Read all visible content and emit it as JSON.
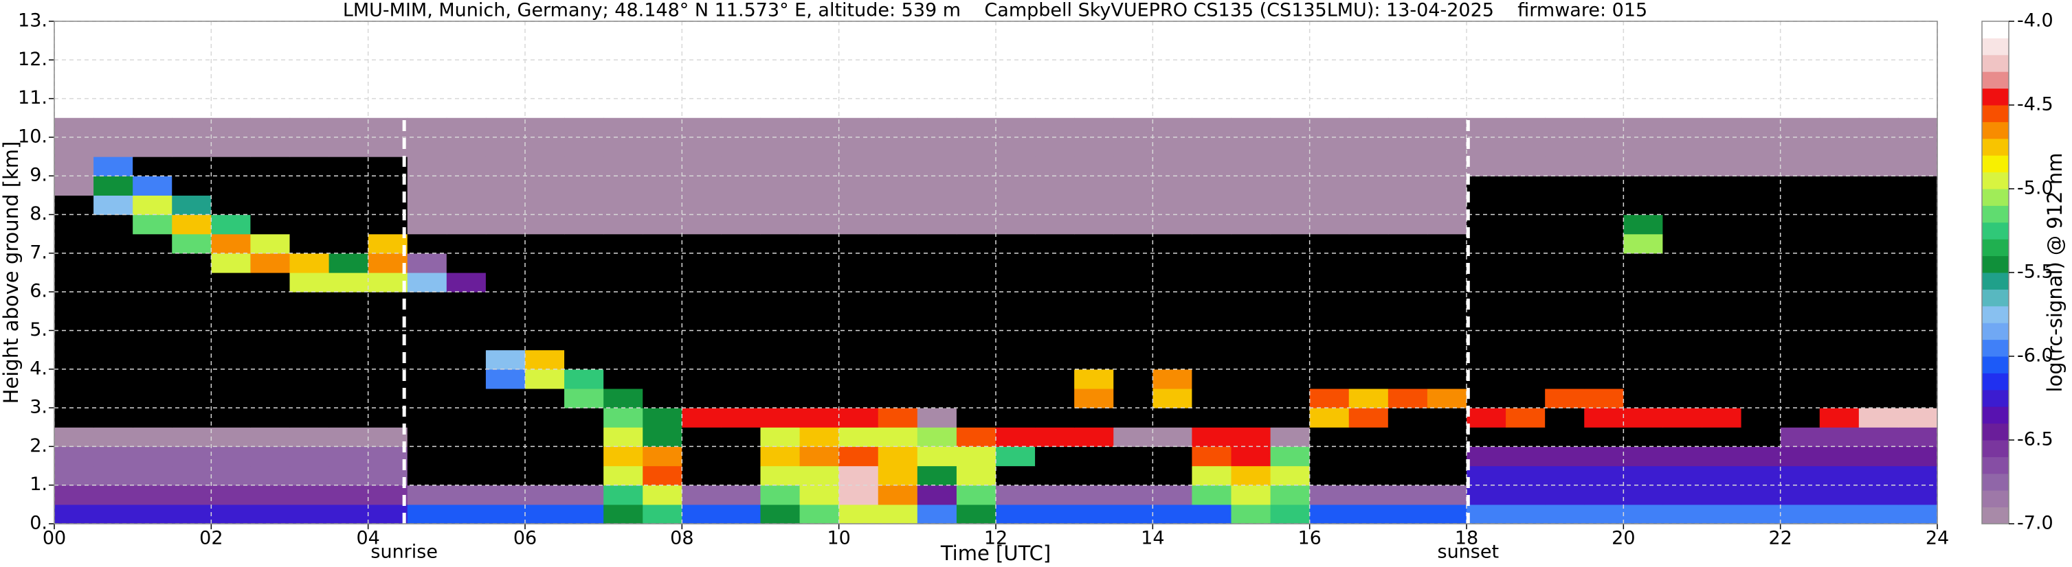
{
  "chart_data": {
    "type": "heatmap",
    "title": "LMU-MIM, Munich, Germany; 48.148° N 11.573° E, altitude: 539 m    Campbell SkyVUEPRO CS135 (CS135LMU): 13-04-2025    firmware: 015",
    "x_label": "Time [UTC]",
    "y_label": "Height above ground [km]",
    "colorbar_label": "log(rc-signal) @ 912 nm",
    "xlim": [
      0,
      24
    ],
    "ylim": [
      0,
      13
    ],
    "clim": [
      -7,
      -4
    ],
    "xticks": [
      {
        "value": 0,
        "label": "00"
      },
      {
        "value": 2,
        "label": "02"
      },
      {
        "value": 4,
        "label": "04"
      },
      {
        "value": 6,
        "label": "06"
      },
      {
        "value": 8,
        "label": "08"
      },
      {
        "value": 10,
        "label": "10"
      },
      {
        "value": 12,
        "label": "12"
      },
      {
        "value": 14,
        "label": "14"
      },
      {
        "value": 16,
        "label": "16"
      },
      {
        "value": 18,
        "label": "18"
      },
      {
        "value": 20,
        "label": "20"
      },
      {
        "value": 22,
        "label": "22"
      },
      {
        "value": 24,
        "label": "24"
      }
    ],
    "yticks": [
      {
        "value": 0,
        "label": "0."
      },
      {
        "value": 1,
        "label": "1."
      },
      {
        "value": 2,
        "label": "2."
      },
      {
        "value": 3,
        "label": "3."
      },
      {
        "value": 4,
        "label": "4."
      },
      {
        "value": 5,
        "label": "5."
      },
      {
        "value": 6,
        "label": "6."
      },
      {
        "value": 7,
        "label": "7."
      },
      {
        "value": 8,
        "label": "8."
      },
      {
        "value": 9,
        "label": "9."
      },
      {
        "value": 10,
        "label": "10."
      },
      {
        "value": 11,
        "label": "11."
      },
      {
        "value": 12,
        "label": "12."
      },
      {
        "value": 13,
        "label": "13."
      }
    ],
    "cticks": [
      {
        "value": -4,
        "label": "-4.0"
      },
      -4.5,
      {
        "value": -5,
        "label": "-5.0"
      },
      -5.5,
      {
        "value": -6,
        "label": "-6.0"
      },
      -6.5,
      {
        "value": -7,
        "label": "-7.0"
      }
    ],
    "grid": true,
    "under_color": "#000000",
    "colormap": [
      "#a88aa8",
      "#9e78a8",
      "#9066a8",
      "#864ea4",
      "#7a369e",
      "#6a1e9a",
      "#5812b0",
      "#3c1cd0",
      "#2030f0",
      "#1c5af8",
      "#4080f8",
      "#70a8f4",
      "#88c0f0",
      "#58b8c0",
      "#20a08a",
      "#10903a",
      "#20b050",
      "#30c878",
      "#60dc70",
      "#a0ec58",
      "#d8f440",
      "#f8f000",
      "#f8c400",
      "#f88c00",
      "#f85000",
      "#f01010",
      "#e88c8c",
      "#f0c4c4",
      "#f8e4e4",
      "#ffffff"
    ],
    "annotations": [
      {
        "text": "sunrise",
        "x": 4.46
      },
      {
        "text": "sunset",
        "x": 18.02
      }
    ],
    "x": [
      0.25,
      0.75,
      1.25,
      1.75,
      2.25,
      2.75,
      3.25,
      3.75,
      4.25,
      4.75,
      5.25,
      5.75,
      6.25,
      6.75,
      7.25,
      7.75,
      8.25,
      8.75,
      9.25,
      9.75,
      10.25,
      10.75,
      11.25,
      11.75,
      12.25,
      12.75,
      13.25,
      13.75,
      14.25,
      14.75,
      15.25,
      15.75,
      16.25,
      16.75,
      17.25,
      17.75,
      18.25,
      18.75,
      19.25,
      19.75,
      20.25,
      20.75,
      21.25,
      21.75,
      22.25,
      22.75,
      23.25,
      23.75
    ],
    "y": [
      0.25,
      0.75,
      1.25,
      1.75,
      2.25,
      2.75,
      3.25,
      3.75,
      4.25,
      4.75,
      5.25,
      5.75,
      6.25,
      6.75,
      7.25,
      7.75,
      8.25,
      8.75,
      9.25,
      9.75,
      10.25
    ],
    "z": [
      [
        -6.2,
        -6.2,
        -6.2,
        -6.2,
        -6.2,
        -6.2,
        -6.2,
        -6.2,
        -6.2,
        -6.1,
        -6.1,
        -6.1,
        -6.1,
        -6.1,
        -5.4,
        -5.3,
        -6.1,
        -6.1,
        -5.5,
        -5.2,
        -4.9,
        -5.0,
        -6.0,
        -5.4,
        -6.1,
        -6.1,
        -6.1,
        -6.1,
        -6.1,
        -6.1,
        -5.2,
        -5.3,
        -6.1,
        -6.1,
        -6.1,
        -6.1,
        -6.0,
        -6.0,
        -6.0,
        -6.0,
        -6.0,
        -6.0,
        -6.0,
        -6.0,
        -6.0,
        -6.0,
        -6.0,
        -6.0
      ],
      [
        -6.6,
        -6.6,
        -6.6,
        -6.6,
        -6.6,
        -6.6,
        -6.6,
        -6.6,
        -6.6,
        -6.7,
        -6.7,
        -6.7,
        -6.7,
        -6.7,
        -5.3,
        -5.0,
        -6.7,
        -6.7,
        -5.2,
        -4.9,
        -4.3,
        -4.7,
        -6.5,
        -5.2,
        -6.7,
        -6.7,
        -6.7,
        -6.7,
        -6.7,
        -5.2,
        -4.9,
        -5.2,
        -6.7,
        -6.7,
        -6.7,
        -6.7,
        -6.2,
        -6.2,
        -6.2,
        -6.2,
        -6.2,
        -6.2,
        -6.2,
        -6.2,
        -6.2,
        -6.2,
        -6.2,
        -6.2
      ],
      [
        -6.7,
        -6.7,
        -6.7,
        -6.7,
        -6.7,
        -6.7,
        -6.7,
        -6.7,
        -6.7,
        -7.2,
        -7.2,
        -7.2,
        -7.2,
        -7.2,
        -5.0,
        -4.6,
        -7.2,
        -7.2,
        -5.0,
        -4.9,
        -4.3,
        -4.8,
        -5.5,
        -5.0,
        -7.2,
        -7.2,
        -7.2,
        -7.2,
        -7.2,
        -5.0,
        -4.8,
        -5.0,
        -7.2,
        -7.2,
        -7.2,
        -7.2,
        -6.3,
        -6.3,
        -6.3,
        -6.3,
        -6.3,
        -6.3,
        -6.3,
        -6.3,
        -6.3,
        -6.3,
        -6.3,
        -6.3
      ],
      [
        -6.8,
        -6.8,
        -6.8,
        -6.8,
        -6.8,
        -6.8,
        -6.8,
        -6.8,
        -6.8,
        -7.2,
        -7.2,
        -7.2,
        -7.2,
        -7.2,
        -4.8,
        -4.7,
        -7.2,
        -7.2,
        -4.8,
        -4.7,
        -4.6,
        -4.8,
        -5.0,
        -4.9,
        -5.3,
        -7.2,
        -7.2,
        -7.2,
        -7.2,
        -4.6,
        -4.5,
        -5.2,
        -7.2,
        -7.2,
        -7.2,
        -7.2,
        -6.4,
        -6.4,
        -6.4,
        -6.4,
        -6.4,
        -6.4,
        -6.4,
        -6.4,
        -6.4,
        -6.4,
        -6.4,
        -6.4
      ],
      [
        -6.9,
        -6.9,
        -6.9,
        -6.9,
        -6.9,
        -6.9,
        -6.9,
        -6.9,
        -6.9,
        -7.2,
        -7.2,
        -7.2,
        -7.2,
        -7.2,
        -5.0,
        -5.5,
        -7.2,
        -7.2,
        -5.0,
        -4.8,
        -5.0,
        -5.0,
        -5.1,
        -4.6,
        -4.5,
        -4.4,
        -4.5,
        -6.9,
        -7.0,
        -4.4,
        -4.4,
        -6.9,
        -7.2,
        -7.2,
        -7.2,
        -7.2,
        -7.3,
        -7.3,
        -7.3,
        -7.3,
        -7.3,
        -7.3,
        -7.3,
        -7.3,
        -6.6,
        -6.6,
        -6.6,
        -6.6
      ],
      [
        -7.5,
        -7.5,
        -7.5,
        -7.5,
        -7.5,
        -7.5,
        -7.5,
        -7.5,
        -7.5,
        -7.2,
        -7.2,
        -7.2,
        -7.2,
        -7.2,
        -5.2,
        -5.5,
        -4.4,
        -4.4,
        -4.4,
        -4.5,
        -4.5,
        -4.6,
        -6.9,
        -7.2,
        -7.2,
        -7.2,
        -7.2,
        -7.2,
        -7.2,
        -7.2,
        -7.2,
        -7.2,
        -4.8,
        -4.6,
        -7.2,
        -7.2,
        -4.5,
        -4.6,
        -7.5,
        -4.4,
        -4.4,
        -4.5,
        -4.5,
        -7.5,
        -7.2,
        -4.5,
        -4.3,
        -4.3
      ],
      [
        -7.5,
        -7.5,
        -7.5,
        -7.5,
        -7.5,
        -7.5,
        -7.5,
        -7.5,
        -7.5,
        -7.2,
        -7.2,
        -7.2,
        -7.2,
        -5.2,
        -5.4,
        -7.2,
        -7.2,
        -7.2,
        -7.2,
        -7.2,
        -7.2,
        -7.2,
        -7.2,
        -7.2,
        -7.2,
        -7.2,
        -4.7,
        -7.2,
        -4.8,
        -7.2,
        -7.2,
        -7.2,
        -4.6,
        -4.8,
        -4.6,
        -4.7,
        -7.5,
        -7.5,
        -4.6,
        -4.6,
        -7.5,
        -7.5,
        -7.5,
        -7.5,
        -7.5,
        -7.5,
        -7.5,
        -7.5
      ],
      [
        -7.5,
        -7.5,
        -7.5,
        -7.5,
        -7.5,
        -7.5,
        -7.5,
        -7.5,
        -7.5,
        -7.2,
        -7.2,
        -6.0,
        -5.0,
        -5.3,
        -7.2,
        -7.2,
        -7.2,
        -7.2,
        -7.2,
        -7.2,
        -7.2,
        -7.2,
        -7.2,
        -7.2,
        -7.2,
        -7.2,
        -4.8,
        -7.2,
        -4.7,
        -7.2,
        -7.2,
        -7.2,
        -7.2,
        -7.2,
        -7.2,
        -7.2,
        -7.5,
        -7.5,
        -7.5,
        -7.5,
        -7.5,
        -7.5,
        -7.5,
        -7.5,
        -7.5,
        -7.5,
        -7.5,
        -7.5
      ],
      [
        -7.5,
        -7.5,
        -7.5,
        -7.5,
        -7.5,
        -7.5,
        -7.5,
        -7.5,
        -7.5,
        -7.2,
        -7.2,
        -5.8,
        -4.8,
        -7.2,
        -7.2,
        -7.2,
        -7.2,
        -7.2,
        -7.2,
        -7.2,
        -7.2,
        -7.2,
        -7.2,
        -7.2,
        -7.2,
        -7.2,
        -7.2,
        -7.2,
        -7.2,
        -7.2,
        -7.2,
        -7.2,
        -7.2,
        -7.2,
        -7.2,
        -7.2,
        -7.5,
        -7.5,
        -7.5,
        -7.5,
        -7.5,
        -7.5,
        -7.5,
        -7.5,
        -7.5,
        -7.5,
        -7.5,
        -7.5
      ],
      [
        -7.5,
        -7.5,
        -7.5,
        -7.5,
        -7.5,
        -7.5,
        -7.5,
        -7.5,
        -7.5,
        -7.2,
        -7.2,
        -7.2,
        -7.2,
        -7.2,
        -7.2,
        -7.2,
        -7.2,
        -7.2,
        -7.2,
        -7.2,
        -7.2,
        -7.2,
        -7.2,
        -7.2,
        -7.2,
        -7.2,
        -7.2,
        -7.2,
        -7.2,
        -7.2,
        -7.2,
        -7.2,
        -7.2,
        -7.2,
        -7.2,
        -7.2,
        -7.5,
        -7.5,
        -7.5,
        -7.5,
        -7.5,
        -7.5,
        -7.5,
        -7.5,
        -7.5,
        -7.5,
        -7.5,
        -7.5
      ],
      [
        -7.5,
        -7.5,
        -7.5,
        -7.5,
        -7.5,
        -7.5,
        -7.5,
        -7.5,
        -7.5,
        -7.2,
        -7.2,
        -7.2,
        -7.2,
        -7.2,
        -7.2,
        -7.2,
        -7.2,
        -7.2,
        -7.2,
        -7.2,
        -7.2,
        -7.2,
        -7.2,
        -7.2,
        -7.2,
        -7.2,
        -7.2,
        -7.2,
        -7.2,
        -7.2,
        -7.2,
        -7.2,
        -7.2,
        -7.2,
        -7.2,
        -7.2,
        -7.5,
        -7.5,
        -7.5,
        -7.5,
        -7.5,
        -7.5,
        -7.5,
        -7.5,
        -7.5,
        -7.5,
        -7.5,
        -7.5
      ],
      [
        -7.5,
        -7.5,
        -7.5,
        -7.5,
        -7.5,
        -7.5,
        -7.5,
        -7.5,
        -7.5,
        -7.2,
        -7.2,
        -7.2,
        -7.2,
        -7.2,
        -7.2,
        -7.2,
        -7.2,
        -7.2,
        -7.2,
        -7.2,
        -7.2,
        -7.2,
        -7.2,
        -7.2,
        -7.2,
        -7.2,
        -7.2,
        -7.2,
        -7.2,
        -7.2,
        -7.2,
        -7.2,
        -7.2,
        -7.2,
        -7.2,
        -7.2,
        -7.5,
        -7.5,
        -7.5,
        -7.5,
        -7.5,
        -7.5,
        -7.5,
        -7.5,
        -7.5,
        -7.5,
        -7.5,
        -7.5
      ],
      [
        -7.5,
        -7.5,
        -7.5,
        -7.5,
        -7.5,
        -7.5,
        -5.0,
        -4.9,
        -4.9,
        -5.8,
        -6.5,
        -7.1,
        -7.1,
        -7.1,
        -7.1,
        -7.1,
        -7.1,
        -7.1,
        -7.1,
        -7.1,
        -7.1,
        -7.1,
        -7.1,
        -7.1,
        -7.1,
        -7.1,
        -7.1,
        -7.1,
        -7.1,
        -7.1,
        -7.1,
        -7.1,
        -7.1,
        -7.1,
        -7.1,
        -7.1,
        -7.5,
        -7.5,
        -7.5,
        -7.5,
        -7.5,
        -7.5,
        -7.5,
        -7.5,
        -7.5,
        -7.5,
        -7.5,
        -7.5
      ],
      [
        -7.5,
        -7.5,
        -7.5,
        -7.5,
        -4.9,
        -4.7,
        -4.8,
        -5.5,
        -4.7,
        -6.8,
        -7.1,
        -7.1,
        -7.1,
        -7.1,
        -7.1,
        -7.1,
        -7.1,
        -7.1,
        -7.1,
        -7.1,
        -7.1,
        -7.1,
        -7.1,
        -7.1,
        -7.1,
        -7.1,
        -7.1,
        -7.1,
        -7.1,
        -7.1,
        -7.1,
        -7.1,
        -7.1,
        -7.1,
        -7.1,
        -7.1,
        -7.5,
        -7.5,
        -7.5,
        -7.5,
        -7.5,
        -7.5,
        -7.5,
        -7.5,
        -7.5,
        -7.5,
        -7.5,
        -7.5
      ],
      [
        -7.5,
        -7.5,
        -7.5,
        -5.2,
        -4.7,
        -5.0,
        -7.5,
        -7.5,
        -4.8,
        -7.1,
        -7.1,
        -7.1,
        -7.1,
        -7.1,
        -7.1,
        -7.1,
        -7.1,
        -7.1,
        -7.1,
        -7.1,
        -7.1,
        -7.1,
        -7.1,
        -7.1,
        -7.1,
        -7.1,
        -7.1,
        -7.1,
        -7.1,
        -7.1,
        -7.1,
        -7.1,
        -7.1,
        -7.1,
        -7.1,
        -7.1,
        -7.5,
        -7.5,
        -7.5,
        -7.5,
        -5.1,
        -7.5,
        -7.5,
        -7.5,
        -7.5,
        -7.5,
        -7.5,
        -7.5
      ],
      [
        -7.5,
        -7.5,
        -5.2,
        -4.8,
        -5.3,
        -7.5,
        -7.5,
        -7.5,
        -7.5,
        -7.0,
        -7.0,
        -7.0,
        -7.0,
        -7.0,
        -7.0,
        -7.0,
        -7.0,
        -7.0,
        -7.0,
        -7.0,
        -7.0,
        -7.0,
        -7.0,
        -7.0,
        -7.0,
        -7.0,
        -7.0,
        -7.0,
        -7.0,
        -7.0,
        -7.0,
        -7.0,
        -7.0,
        -7.0,
        -7.0,
        -7.0,
        -7.4,
        -7.4,
        -7.4,
        -7.4,
        -5.4,
        -7.4,
        -7.4,
        -7.4,
        -7.4,
        -7.4,
        -7.4,
        -7.4
      ],
      [
        -7.3,
        -5.7,
        -5.0,
        -5.6,
        -7.4,
        -7.4,
        -7.4,
        -7.4,
        -7.4,
        -7.0,
        -7.0,
        -7.0,
        -7.0,
        -7.0,
        -7.0,
        -7.0,
        -7.0,
        -7.0,
        -7.0,
        -7.0,
        -7.0,
        -7.0,
        -7.0,
        -7.0,
        -7.0,
        -7.0,
        -7.0,
        -7.0,
        -7.0,
        -7.0,
        -7.0,
        -7.0,
        -7.0,
        -7.0,
        -7.0,
        -7.0,
        -7.2,
        -7.2,
        -7.2,
        -7.2,
        -7.2,
        -7.2,
        -7.2,
        -7.2,
        -7.2,
        -7.2,
        -7.2,
        -7.2
      ],
      [
        -7.0,
        -5.5,
        -6.0,
        -7.2,
        -7.2,
        -7.2,
        -7.2,
        -7.2,
        -7.2,
        -6.95,
        -6.95,
        -6.95,
        -6.95,
        -6.95,
        -6.95,
        -6.95,
        -6.95,
        -6.95,
        -6.95,
        -6.95,
        -6.95,
        -6.95,
        -6.95,
        -6.95,
        -6.95,
        -6.95,
        -6.95,
        -6.95,
        -6.95,
        -6.95,
        -6.95,
        -6.95,
        -6.95,
        -6.95,
        -6.95,
        -6.95,
        -7.1,
        -7.1,
        -7.1,
        -7.1,
        -7.1,
        -7.1,
        -7.1,
        -7.1,
        -7.1,
        -7.1,
        -7.1,
        -7.1
      ],
      [
        -6.9,
        -6.0,
        -7.1,
        -7.1,
        -7.1,
        -7.1,
        -7.1,
        -7.1,
        -7.1,
        -6.9,
        -6.9,
        -6.9,
        -6.9,
        -6.9,
        -6.9,
        -6.9,
        -6.9,
        -6.9,
        -6.9,
        -6.9,
        -6.9,
        -6.9,
        -6.9,
        -6.9,
        -6.9,
        -6.9,
        -6.9,
        -6.9,
        -6.9,
        -6.9,
        -6.9,
        -6.9,
        -6.9,
        -6.9,
        -6.9,
        -6.9,
        -7.0,
        -7.0,
        -7.0,
        -7.0,
        -7.0,
        -7.0,
        -7.0,
        -7.0,
        -7.0,
        -7.0,
        -7.0,
        -7.0
      ],
      [
        -6.9,
        -6.9,
        -7.0,
        -7.0,
        -7.0,
        -7.0,
        -7.0,
        -7.0,
        -7.0,
        -6.9,
        -6.9,
        -6.9,
        -6.9,
        -6.9,
        -6.9,
        -6.9,
        -6.9,
        -6.9,
        -6.9,
        -6.9,
        -6.9,
        -6.9,
        -6.9,
        -6.9,
        -6.9,
        -6.9,
        -6.9,
        -6.9,
        -6.9,
        -6.9,
        -6.9,
        -6.9,
        -6.9,
        -6.9,
        -6.9,
        -6.9,
        -6.95,
        -6.95,
        -6.95,
        -6.95,
        -6.95,
        -6.95,
        -6.95,
        -6.95,
        -6.95,
        -6.95,
        -6.95,
        -6.95
      ],
      [
        -6.9,
        -6.9,
        -6.9,
        -6.9,
        -6.9,
        -6.9,
        -6.9,
        -6.9,
        -6.9,
        -6.9,
        -6.9,
        -6.9,
        -6.9,
        -6.9,
        -6.9,
        -6.9,
        -6.9,
        -6.9,
        -6.9,
        -6.9,
        -6.9,
        -6.9,
        -6.9,
        -6.9,
        -6.9,
        -6.9,
        -6.9,
        -6.9,
        -6.9,
        -6.9,
        -6.9,
        -6.9,
        -6.9,
        -6.9,
        -6.9,
        -6.9,
        -6.95,
        -6.95,
        -6.95,
        -6.95,
        -6.95,
        -6.95,
        -6.95,
        -6.95,
        -6.95,
        -6.95,
        -6.95,
        -6.95
      ]
    ]
  }
}
